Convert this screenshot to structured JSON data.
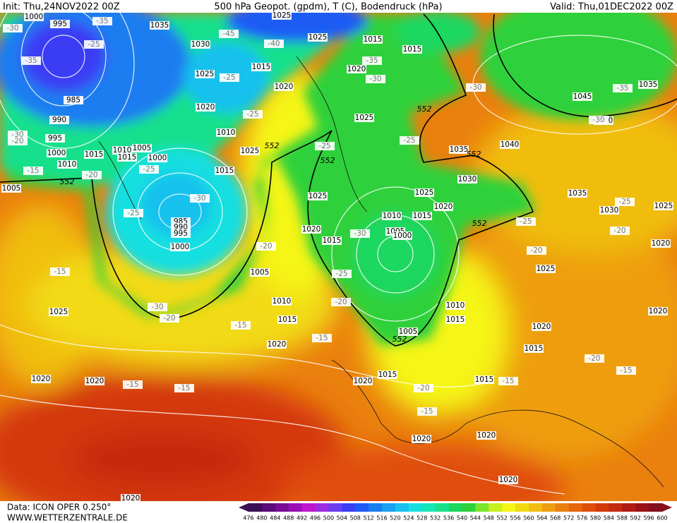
{
  "header": {
    "init": "Init: Thu,24NOV2022 00Z",
    "title": "500 hPa Geopot. (gpdm), T (C), Bodendruck (hPa)",
    "valid": "Valid: Thu,01DEC2022 00Z"
  },
  "footer": {
    "source": "Data: ICON OPER 0.250°",
    "site": "WWW.WETTERZENTRALE.DE"
  },
  "legend": {
    "levels": [
      476,
      480,
      484,
      488,
      492,
      496,
      500,
      504,
      508,
      512,
      516,
      520,
      524,
      528,
      532,
      536,
      540,
      544,
      548,
      552,
      556,
      560,
      564,
      568,
      572,
      576,
      580,
      584,
      588,
      592,
      596,
      600
    ],
    "colors": [
      "#3b0f56",
      "#5a0a7a",
      "#7a0a96",
      "#9b10b4",
      "#bd16d0",
      "#9a2ee0",
      "#6a3ef0",
      "#3a3ef5",
      "#1e5cf5",
      "#1a7df0",
      "#1aa0ee",
      "#18c1ee",
      "#17dfe0",
      "#18e5b8",
      "#19e08c",
      "#1bd760",
      "#2dd13b",
      "#7be52a",
      "#c7f01e",
      "#f5f516",
      "#f2da13",
      "#f0bd11",
      "#ee9e10",
      "#ea800e",
      "#e6650d",
      "#e04e0c",
      "#d4390c",
      "#c52a10",
      "#b01c14",
      "#9a1218",
      "#84101e"
    ]
  },
  "map": {
    "pressure_labels": [
      1000,
      995,
      985,
      990,
      995,
      1000,
      1015,
      1010,
      1035,
      1030,
      1025,
      1020,
      1010,
      1025,
      1015,
      1005,
      1000,
      1010,
      1015,
      985,
      990,
      995,
      1000,
      1005,
      1010,
      1015,
      1020,
      1015,
      1020,
      1025,
      1015,
      1015,
      1020,
      1025,
      1025,
      1020,
      1015,
      1010,
      1015,
      1005,
      1000,
      1020,
      1025,
      1030,
      1035,
      1040,
      1045,
      1035,
      1040,
      1035,
      1030,
      1025,
      1020,
      1020,
      1025,
      1020,
      1015,
      1015,
      1010,
      1015,
      1005,
      1015,
      1020,
      1020,
      1020,
      1020,
      1025,
      1020,
      1020,
      1020,
      1025,
      1005
    ],
    "temperature_labels": [
      -30,
      -35,
      -25,
      -35,
      -30,
      -20,
      -15,
      -20,
      -25,
      -25,
      -30,
      -20,
      -25,
      -25,
      -40,
      -45,
      -35,
      -30,
      -30,
      -25,
      -25,
      -30,
      -25,
      -20,
      -30,
      -20,
      -15,
      -15,
      -15,
      -15,
      -20,
      -15,
      -15,
      -20,
      -15,
      -20,
      -20,
      -25,
      -25,
      -30,
      -35,
      -15
    ],
    "geopotential_labels": [
      552,
      552,
      552,
      552,
      552,
      552,
      552
    ]
  }
}
